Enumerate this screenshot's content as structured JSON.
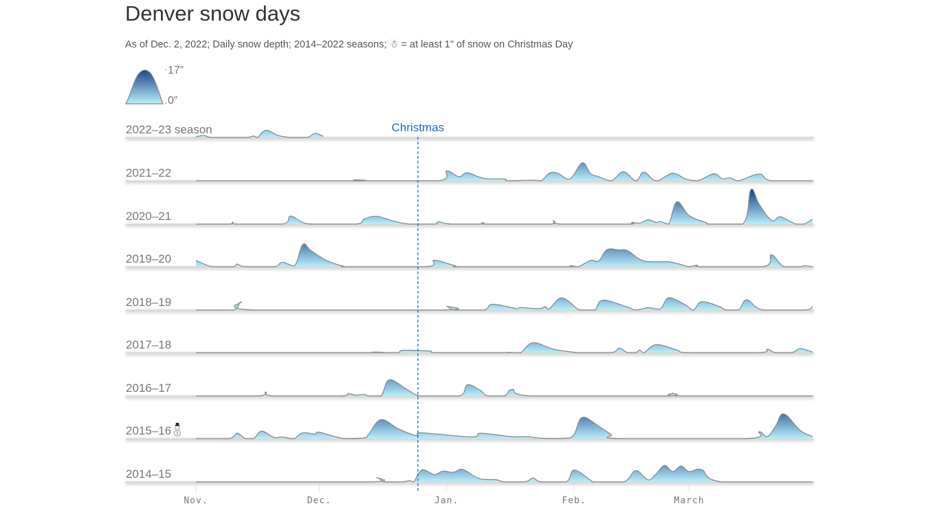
{
  "title": "Denver snow days",
  "subtitle": "As of Dec. 2, 2022; Daily snow depth; 2014–2022 seasons; ☃ = at least 1\" of snow on Christmas Day",
  "chart_data": {
    "type": "area",
    "subtype": "ridgeline",
    "title": "Denver snow days",
    "legend": {
      "max_label": "17”",
      "min_label": "0”",
      "max": 17,
      "min": 0,
      "placement": "top-left"
    },
    "annotation": {
      "label": "Christmas",
      "date": "12-25",
      "color": "#1a6fc9"
    },
    "x_ticks": [
      {
        "label": "Nov.",
        "date": "11-01"
      },
      {
        "label": "Dec.",
        "date": "12-01"
      },
      {
        "label": "Jan.",
        "date": "01-01"
      },
      {
        "label": "Feb.",
        "date": "02-01"
      },
      {
        "label": "March",
        "date": "03-01"
      }
    ],
    "x_range": [
      "10-15",
      "03-31"
    ],
    "y_unit": "inches of snow depth",
    "colors": {
      "low": "#b8eefb",
      "high": "#163f86",
      "stroke": "#8a8a8a",
      "highlight": "#1a6fc9",
      "label": "#777777"
    },
    "series": [
      {
        "name": "2022–23 season",
        "christmas_snow": false,
        "points": [
          [
            "11-01",
            0.3
          ],
          [
            "11-03",
            1
          ],
          [
            "11-05",
            0
          ],
          [
            "11-13",
            0
          ],
          [
            "11-15",
            0.7
          ],
          [
            "11-16",
            0
          ],
          [
            "11-18",
            3.5
          ],
          [
            "11-21",
            1
          ],
          [
            "11-24",
            0
          ],
          [
            "11-28",
            0
          ],
          [
            "11-30",
            2
          ],
          [
            "12-02",
            0.5
          ]
        ]
      },
      {
        "name": "2021–22",
        "christmas_snow": false,
        "points": [
          [
            "11-01",
            0
          ],
          [
            "12-09",
            0
          ],
          [
            "12-10",
            0.5
          ],
          [
            "12-11",
            0
          ],
          [
            "12-30",
            0
          ],
          [
            "01-01",
            4.8
          ],
          [
            "01-04",
            2
          ],
          [
            "01-06",
            3.9
          ],
          [
            "01-10",
            1.2
          ],
          [
            "01-15",
            0.9
          ],
          [
            "01-16",
            0
          ],
          [
            "01-22",
            0.3
          ],
          [
            "01-24",
            0
          ],
          [
            "01-26",
            3.7
          ],
          [
            "01-28",
            3.7
          ],
          [
            "01-31",
            1
          ],
          [
            "02-03",
            8.7
          ],
          [
            "02-05",
            3.5
          ],
          [
            "02-07",
            2
          ],
          [
            "02-10",
            0
          ],
          [
            "02-13",
            4.4
          ],
          [
            "02-16",
            0
          ],
          [
            "02-18",
            4.2
          ],
          [
            "02-21",
            0
          ],
          [
            "02-25",
            3.7
          ],
          [
            "02-28",
            1
          ],
          [
            "03-03",
            0
          ],
          [
            "03-07",
            3.4
          ],
          [
            "03-09",
            1
          ],
          [
            "03-11",
            1.4
          ],
          [
            "03-13",
            0
          ],
          [
            "03-18",
            3.3
          ],
          [
            "03-21",
            0
          ],
          [
            "03-31",
            0
          ]
        ]
      },
      {
        "name": "2020–21",
        "christmas_snow": false,
        "points": [
          [
            "11-01",
            0
          ],
          [
            "11-09",
            0
          ],
          [
            "11-10",
            1
          ],
          [
            "11-11",
            0
          ],
          [
            "11-22",
            0
          ],
          [
            "11-24",
            3.9
          ],
          [
            "11-27",
            0.8
          ],
          [
            "11-30",
            0
          ],
          [
            "12-10",
            0
          ],
          [
            "12-12",
            2.5
          ],
          [
            "12-15",
            3.8
          ],
          [
            "12-19",
            1.5
          ],
          [
            "12-23",
            0
          ],
          [
            "12-29",
            0
          ],
          [
            "12-30",
            1.1
          ],
          [
            "01-02",
            0
          ],
          [
            "01-09",
            0
          ],
          [
            "01-10",
            0.8
          ],
          [
            "01-11",
            0
          ],
          [
            "01-26",
            0
          ],
          [
            "01-27",
            1.7
          ],
          [
            "01-29",
            0
          ],
          [
            "02-14",
            0
          ],
          [
            "02-15",
            0.8
          ],
          [
            "02-17",
            0.5
          ],
          [
            "02-19",
            2.1
          ],
          [
            "02-21",
            0.8
          ],
          [
            "02-22",
            1.3
          ],
          [
            "02-24",
            0
          ],
          [
            "02-26",
            10.8
          ],
          [
            "03-01",
            4.1
          ],
          [
            "03-05",
            0.8
          ],
          [
            "03-06",
            0
          ],
          [
            "03-14",
            0
          ],
          [
            "03-16",
            16.7
          ],
          [
            "03-18",
            9.7
          ],
          [
            "03-21",
            1.9
          ],
          [
            "03-23",
            3.6
          ],
          [
            "03-25",
            1.9
          ],
          [
            "03-27",
            0
          ],
          [
            "03-29",
            0
          ],
          [
            "03-31",
            2.4
          ]
        ]
      },
      {
        "name": "2019–20",
        "christmas_snow": false,
        "points": [
          [
            "11-01",
            3
          ],
          [
            "11-05",
            0
          ],
          [
            "11-10",
            0
          ],
          [
            "11-11",
            1.3
          ],
          [
            "11-13",
            0
          ],
          [
            "11-20",
            0
          ],
          [
            "11-22",
            2.2
          ],
          [
            "11-25",
            0.5
          ],
          [
            "11-27",
            10.8
          ],
          [
            "11-29",
            7.8
          ],
          [
            "12-03",
            2.8
          ],
          [
            "12-07",
            0.2
          ],
          [
            "12-08",
            0
          ],
          [
            "12-27",
            0
          ],
          [
            "12-29",
            3.1
          ],
          [
            "01-03",
            0.5
          ],
          [
            "01-05",
            0
          ],
          [
            "01-30",
            0
          ],
          [
            "01-31",
            0.5
          ],
          [
            "02-02",
            0
          ],
          [
            "02-05",
            3.1
          ],
          [
            "02-07",
            2.8
          ],
          [
            "02-09",
            8.3
          ],
          [
            "02-12",
            8.1
          ],
          [
            "02-14",
            7.8
          ],
          [
            "02-18",
            2.8
          ],
          [
            "02-24",
            2.4
          ],
          [
            "02-28",
            0.5
          ],
          [
            "03-01",
            0
          ],
          [
            "03-03",
            0.8
          ],
          [
            "03-04",
            0
          ],
          [
            "03-19",
            0
          ],
          [
            "03-21",
            5.8
          ],
          [
            "03-24",
            0
          ],
          [
            "03-28",
            0
          ],
          [
            "03-29",
            0.5
          ],
          [
            "03-31",
            0
          ]
        ]
      },
      {
        "name": "2018–19",
        "christmas_snow": false,
        "points": [
          [
            "11-01",
            0
          ],
          [
            "11-10",
            0
          ],
          [
            "11-12",
            3.9
          ],
          [
            "11-15",
            0
          ],
          [
            "12-31",
            0
          ],
          [
            "01-01",
            1.8
          ],
          [
            "01-03",
            0
          ],
          [
            "01-10",
            0
          ],
          [
            "01-12",
            2.8
          ],
          [
            "01-17",
            1.1
          ],
          [
            "01-18",
            0.5
          ],
          [
            "01-19",
            1.2
          ],
          [
            "01-22",
            0.8
          ],
          [
            "01-24",
            0.8
          ],
          [
            "01-25",
            1.6
          ],
          [
            "01-26",
            0.6
          ],
          [
            "01-29",
            5.9
          ],
          [
            "02-02",
            0.3
          ],
          [
            "02-03",
            0
          ],
          [
            "02-06",
            0
          ],
          [
            "02-08",
            4.8
          ],
          [
            "02-14",
            1.4
          ],
          [
            "02-16",
            0
          ],
          [
            "02-19",
            1.1
          ],
          [
            "02-22",
            0.6
          ],
          [
            "02-24",
            5.9
          ],
          [
            "02-28",
            2.6
          ],
          [
            "03-02",
            0
          ],
          [
            "03-04",
            4
          ],
          [
            "03-08",
            2
          ],
          [
            "03-10",
            0
          ],
          [
            "03-13",
            0
          ],
          [
            "03-15",
            5
          ],
          [
            "03-19",
            0
          ],
          [
            "03-29",
            0
          ],
          [
            "03-31",
            1.8
          ]
        ]
      },
      {
        "name": "2017–18",
        "christmas_snow": false,
        "points": [
          [
            "11-01",
            0
          ],
          [
            "12-13",
            0
          ],
          [
            "12-14",
            0.3
          ],
          [
            "12-15",
            0
          ],
          [
            "12-20",
            0
          ],
          [
            "12-21",
            1.1
          ],
          [
            "12-24",
            1.1
          ],
          [
            "12-28",
            0.8
          ],
          [
            "12-30",
            0
          ],
          [
            "01-15",
            0
          ],
          [
            "01-16",
            0.2
          ],
          [
            "01-17",
            0
          ],
          [
            "01-19",
            0
          ],
          [
            "01-22",
            4.8
          ],
          [
            "01-27",
            1.7
          ],
          [
            "02-01",
            0.2
          ],
          [
            "02-02",
            0
          ],
          [
            "02-10",
            0
          ],
          [
            "02-12",
            2.2
          ],
          [
            "02-14",
            0
          ],
          [
            "02-16",
            0
          ],
          [
            "02-17",
            1.3
          ],
          [
            "02-18",
            0
          ],
          [
            "02-21",
            3.9
          ],
          [
            "02-26",
            1.3
          ],
          [
            "03-01",
            0
          ],
          [
            "03-18",
            0
          ],
          [
            "03-20",
            1.7
          ],
          [
            "03-22",
            0
          ],
          [
            "03-26",
            0
          ],
          [
            "03-28",
            2
          ],
          [
            "03-31",
            0.3
          ]
        ]
      },
      {
        "name": "2016–17",
        "christmas_snow": false,
        "points": [
          [
            "11-01",
            0
          ],
          [
            "11-16",
            0
          ],
          [
            "11-18",
            1.9
          ],
          [
            "11-20",
            0
          ],
          [
            "12-06",
            0
          ],
          [
            "12-08",
            1.1
          ],
          [
            "12-10",
            0.4
          ],
          [
            "12-12",
            0.8
          ],
          [
            "12-13",
            0
          ],
          [
            "12-16",
            0
          ],
          [
            "12-18",
            7.8
          ],
          [
            "12-22",
            3.6
          ],
          [
            "12-24",
            1.1
          ],
          [
            "12-25",
            0.2
          ],
          [
            "12-26",
            0
          ],
          [
            "01-04",
            0
          ],
          [
            "01-06",
            5.4
          ],
          [
            "01-09",
            3
          ],
          [
            "01-11",
            0
          ],
          [
            "01-15",
            0
          ],
          [
            "01-17",
            3.2
          ],
          [
            "01-22",
            0
          ],
          [
            "02-23",
            0
          ],
          [
            "02-25",
            1.4
          ],
          [
            "02-27",
            0
          ],
          [
            "03-31",
            0
          ]
        ]
      },
      {
        "name": "2015–16",
        "christmas_snow": true,
        "points": [
          [
            "11-01",
            0
          ],
          [
            "11-09",
            0
          ],
          [
            "11-11",
            2.6
          ],
          [
            "11-13",
            0
          ],
          [
            "11-15",
            0
          ],
          [
            "11-17",
            3.6
          ],
          [
            "11-20",
            0.6
          ],
          [
            "11-22",
            0.8
          ],
          [
            "11-24",
            0
          ],
          [
            "11-25",
            0
          ],
          [
            "11-27",
            2.8
          ],
          [
            "11-30",
            2.2
          ],
          [
            "12-01",
            3.1
          ],
          [
            "12-07",
            0
          ],
          [
            "12-12",
            0.4
          ],
          [
            "12-13",
            2.1
          ],
          [
            "12-16",
            9.2
          ],
          [
            "12-20",
            5
          ],
          [
            "12-23",
            2.4
          ],
          [
            "12-25",
            1.4
          ],
          [
            "12-26",
            2.8
          ],
          [
            "01-07",
            0.8
          ],
          [
            "01-09",
            2.6
          ],
          [
            "01-13",
            1.9
          ],
          [
            "01-17",
            0.9
          ],
          [
            "01-21",
            0.9
          ],
          [
            "01-24",
            0.2
          ],
          [
            "01-30",
            0.2
          ],
          [
            "02-01",
            2
          ],
          [
            "02-03",
            10.3
          ],
          [
            "02-07",
            6
          ],
          [
            "02-10",
            2
          ],
          [
            "02-12",
            0
          ],
          [
            "03-15",
            0
          ],
          [
            "03-18",
            3.3
          ],
          [
            "03-20",
            1
          ],
          [
            "03-22",
            6
          ],
          [
            "03-24",
            12
          ],
          [
            "03-28",
            4
          ],
          [
            "03-31",
            1
          ]
        ]
      },
      {
        "name": "2014–15",
        "christmas_snow": false,
        "points": [
          [
            "11-01",
            0
          ],
          [
            "12-13",
            0
          ],
          [
            "12-15",
            2.1
          ],
          [
            "12-17",
            0
          ],
          [
            "12-21",
            0
          ],
          [
            "12-23",
            0.6
          ],
          [
            "12-24",
            0
          ],
          [
            "12-26",
            5.8
          ],
          [
            "12-29",
            3.6
          ],
          [
            "12-31",
            5.2
          ],
          [
            "01-02",
            4.7
          ],
          [
            "01-03",
            4.9
          ],
          [
            "01-05",
            6
          ],
          [
            "01-09",
            1.6
          ],
          [
            "01-13",
            1.1
          ],
          [
            "01-15",
            0
          ],
          [
            "01-20",
            0
          ],
          [
            "01-22",
            1.9
          ],
          [
            "01-24",
            0
          ],
          [
            "01-30",
            0
          ],
          [
            "02-01",
            5.8
          ],
          [
            "02-05",
            0.8
          ],
          [
            "02-06",
            0
          ],
          [
            "02-13",
            0
          ],
          [
            "02-16",
            5.5
          ],
          [
            "02-19",
            1
          ],
          [
            "02-21",
            4
          ],
          [
            "02-23",
            8
          ],
          [
            "02-25",
            5
          ],
          [
            "02-27",
            7.7
          ],
          [
            "03-01",
            5
          ],
          [
            "03-04",
            6
          ],
          [
            "03-09",
            0
          ],
          [
            "03-31",
            0
          ]
        ]
      }
    ]
  }
}
